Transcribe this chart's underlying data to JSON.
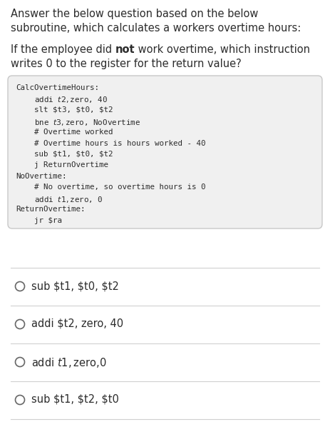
{
  "title_line1": "Answer the below question based on the below",
  "title_line2": "subroutine, which calculates a workers overtime hours:",
  "question_pre": "If the employee did ",
  "question_bold": "not",
  "question_post": " work overtime, which instruction",
  "question_line2": "writes 0 to the register for the return value?",
  "code_lines": [
    "CalcOvertimeHours:",
    "    addi $t2, $zero, 40",
    "    slt $t3, $t0, $t2",
    "    bne $t3, $zero, NoOvertime",
    "    # Overtime worked",
    "    # Overtime hours is hours worked - 40",
    "    sub $t1, $t0, $t2",
    "    j ReturnOvertime",
    "NoOvertime:",
    "    # No overtime, so overtime hours is 0",
    "    addi $t1, $zero, 0",
    "ReturnOvertime:",
    "    jr $ra"
  ],
  "options": [
    "sub $t1, $t0, $t2",
    "addi $t2, zero, 40",
    "addi $t1, $zero,0",
    "sub $t1, $t2, $t0"
  ],
  "code_bg": "#f0f0f0",
  "code_border": "#c8c8c8",
  "bg_color": "#ffffff",
  "text_color": "#2c2c2c",
  "code_text_color": "#2c2c2c",
  "title_font_size": 10.5,
  "question_font_size": 10.5,
  "code_font_size": 7.8,
  "option_font_size": 10.5,
  "circle_color": "#666666",
  "divider_color": "#d0d0d0"
}
